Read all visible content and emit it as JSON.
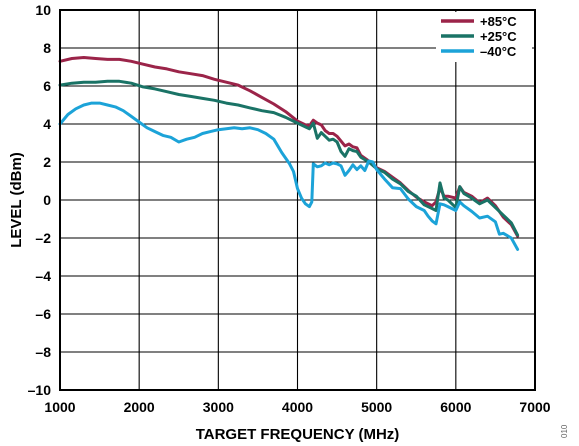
{
  "chart_data": {
    "type": "line",
    "title": "",
    "xlabel": "TARGET FREQUENCY (MHz)",
    "ylabel": "LEVEL (dBm)",
    "xlim": [
      1000,
      7000
    ],
    "ylim": [
      -10,
      10
    ],
    "xticks": [
      1000,
      2000,
      3000,
      4000,
      5000,
      6000,
      7000
    ],
    "yticks": [
      -10,
      -8,
      -6,
      -4,
      -2,
      0,
      2,
      4,
      6,
      8,
      10
    ],
    "xtick_labels": [
      "1000",
      "2000",
      "3000",
      "4000",
      "5000",
      "6000",
      "7000"
    ],
    "ytick_labels": [
      "–10",
      "–8",
      "–6",
      "–4",
      "–2",
      "0",
      "2",
      "4",
      "6",
      "8",
      "10"
    ],
    "grid": true,
    "legend_position": "top-right",
    "side_label": "010",
    "series": [
      {
        "name": "+85°C",
        "color": "#9b2449",
        "points": [
          [
            1000,
            7.3
          ],
          [
            1150,
            7.45
          ],
          [
            1300,
            7.5
          ],
          [
            1450,
            7.45
          ],
          [
            1600,
            7.4
          ],
          [
            1750,
            7.4
          ],
          [
            1900,
            7.3
          ],
          [
            2050,
            7.15
          ],
          [
            2200,
            7.0
          ],
          [
            2350,
            6.9
          ],
          [
            2500,
            6.75
          ],
          [
            2650,
            6.65
          ],
          [
            2800,
            6.55
          ],
          [
            2950,
            6.35
          ],
          [
            3100,
            6.2
          ],
          [
            3250,
            6.05
          ],
          [
            3400,
            5.75
          ],
          [
            3550,
            5.4
          ],
          [
            3700,
            5.05
          ],
          [
            3850,
            4.65
          ],
          [
            4000,
            4.15
          ],
          [
            4100,
            3.95
          ],
          [
            4150,
            3.9
          ],
          [
            4200,
            4.2
          ],
          [
            4250,
            4.05
          ],
          [
            4300,
            3.95
          ],
          [
            4350,
            3.65
          ],
          [
            4400,
            3.5
          ],
          [
            4450,
            3.5
          ],
          [
            4500,
            3.35
          ],
          [
            4550,
            3.1
          ],
          [
            4600,
            2.85
          ],
          [
            4650,
            2.95
          ],
          [
            4700,
            2.8
          ],
          [
            4750,
            2.75
          ],
          [
            4800,
            2.35
          ],
          [
            4900,
            2.05
          ],
          [
            5000,
            1.7
          ],
          [
            5100,
            1.5
          ],
          [
            5200,
            1.2
          ],
          [
            5300,
            0.9
          ],
          [
            5400,
            0.5
          ],
          [
            5500,
            0.15
          ],
          [
            5600,
            -0.1
          ],
          [
            5700,
            -0.3
          ],
          [
            5750,
            -0.1
          ],
          [
            5800,
            0.65
          ],
          [
            5850,
            0.2
          ],
          [
            5900,
            0.2
          ],
          [
            6000,
            0.1
          ],
          [
            6050,
            0.7
          ],
          [
            6100,
            0.4
          ],
          [
            6200,
            0.2
          ],
          [
            6300,
            -0.15
          ],
          [
            6400,
            0.1
          ],
          [
            6500,
            -0.3
          ],
          [
            6600,
            -0.9
          ],
          [
            6700,
            -1.3
          ],
          [
            6780,
            -1.9
          ]
        ]
      },
      {
        "name": "+25°C",
        "color": "#1a7366",
        "points": [
          [
            1000,
            6.05
          ],
          [
            1150,
            6.15
          ],
          [
            1300,
            6.2
          ],
          [
            1450,
            6.2
          ],
          [
            1600,
            6.25
          ],
          [
            1750,
            6.25
          ],
          [
            1900,
            6.15
          ],
          [
            2050,
            5.95
          ],
          [
            2200,
            5.85
          ],
          [
            2350,
            5.7
          ],
          [
            2500,
            5.55
          ],
          [
            2650,
            5.45
          ],
          [
            2800,
            5.35
          ],
          [
            2950,
            5.25
          ],
          [
            3100,
            5.1
          ],
          [
            3250,
            5.0
          ],
          [
            3400,
            4.85
          ],
          [
            3550,
            4.7
          ],
          [
            3700,
            4.6
          ],
          [
            3850,
            4.35
          ],
          [
            4000,
            4.05
          ],
          [
            4100,
            3.85
          ],
          [
            4150,
            3.75
          ],
          [
            4200,
            4.05
          ],
          [
            4250,
            3.25
          ],
          [
            4300,
            3.55
          ],
          [
            4350,
            3.35
          ],
          [
            4400,
            3.15
          ],
          [
            4450,
            3.2
          ],
          [
            4500,
            3.05
          ],
          [
            4550,
            2.55
          ],
          [
            4600,
            2.3
          ],
          [
            4650,
            2.7
          ],
          [
            4700,
            2.6
          ],
          [
            4750,
            2.55
          ],
          [
            4800,
            2.25
          ],
          [
            4900,
            2.0
          ],
          [
            5000,
            1.65
          ],
          [
            5100,
            1.45
          ],
          [
            5200,
            1.1
          ],
          [
            5300,
            0.85
          ],
          [
            5400,
            0.45
          ],
          [
            5500,
            0.2
          ],
          [
            5600,
            -0.25
          ],
          [
            5700,
            -0.45
          ],
          [
            5750,
            -0.55
          ],
          [
            5800,
            0.9
          ],
          [
            5850,
            0.1
          ],
          [
            5900,
            0.0
          ],
          [
            6000,
            -0.4
          ],
          [
            6050,
            0.7
          ],
          [
            6100,
            0.35
          ],
          [
            6200,
            0.1
          ],
          [
            6300,
            -0.2
          ],
          [
            6400,
            0.0
          ],
          [
            6500,
            -0.4
          ],
          [
            6600,
            -0.8
          ],
          [
            6700,
            -1.2
          ],
          [
            6780,
            -1.85
          ]
        ]
      },
      {
        "name": "–40°C",
        "color": "#1ca3d8",
        "points": [
          [
            1000,
            4.0
          ],
          [
            1100,
            4.5
          ],
          [
            1200,
            4.8
          ],
          [
            1300,
            5.0
          ],
          [
            1400,
            5.1
          ],
          [
            1500,
            5.1
          ],
          [
            1600,
            5.0
          ],
          [
            1700,
            4.9
          ],
          [
            1800,
            4.7
          ],
          [
            1900,
            4.4
          ],
          [
            2000,
            4.1
          ],
          [
            2100,
            3.8
          ],
          [
            2200,
            3.6
          ],
          [
            2300,
            3.4
          ],
          [
            2400,
            3.3
          ],
          [
            2500,
            3.05
          ],
          [
            2600,
            3.2
          ],
          [
            2700,
            3.3
          ],
          [
            2800,
            3.5
          ],
          [
            2900,
            3.6
          ],
          [
            3000,
            3.7
          ],
          [
            3100,
            3.75
          ],
          [
            3200,
            3.8
          ],
          [
            3300,
            3.75
          ],
          [
            3400,
            3.8
          ],
          [
            3500,
            3.7
          ],
          [
            3600,
            3.5
          ],
          [
            3700,
            3.2
          ],
          [
            3800,
            2.5
          ],
          [
            3900,
            1.9
          ],
          [
            3950,
            1.5
          ],
          [
            4000,
            0.6
          ],
          [
            4050,
            0.1
          ],
          [
            4100,
            -0.2
          ],
          [
            4150,
            -0.35
          ],
          [
            4180,
            -0.1
          ],
          [
            4200,
            1.9
          ],
          [
            4250,
            1.75
          ],
          [
            4300,
            1.8
          ],
          [
            4350,
            1.95
          ],
          [
            4400,
            1.85
          ],
          [
            4450,
            1.95
          ],
          [
            4500,
            1.9
          ],
          [
            4550,
            1.8
          ],
          [
            4600,
            1.3
          ],
          [
            4650,
            1.55
          ],
          [
            4700,
            1.85
          ],
          [
            4750,
            1.6
          ],
          [
            4800,
            1.8
          ],
          [
            4850,
            1.55
          ],
          [
            4900,
            2.05
          ],
          [
            4950,
            2.0
          ],
          [
            5000,
            1.6
          ],
          [
            5100,
            1.1
          ],
          [
            5200,
            0.65
          ],
          [
            5300,
            0.6
          ],
          [
            5400,
            0.05
          ],
          [
            5500,
            -0.35
          ],
          [
            5600,
            -0.55
          ],
          [
            5650,
            -0.85
          ],
          [
            5700,
            -1.1
          ],
          [
            5750,
            -1.25
          ],
          [
            5800,
            -0.2
          ],
          [
            5850,
            -0.25
          ],
          [
            5900,
            -0.35
          ],
          [
            6000,
            -0.55
          ],
          [
            6050,
            -0.1
          ],
          [
            6100,
            -0.3
          ],
          [
            6200,
            -0.6
          ],
          [
            6300,
            -0.95
          ],
          [
            6400,
            -0.85
          ],
          [
            6500,
            -1.15
          ],
          [
            6550,
            -1.8
          ],
          [
            6600,
            -1.75
          ],
          [
            6700,
            -2.0
          ],
          [
            6780,
            -2.6
          ]
        ]
      }
    ]
  }
}
